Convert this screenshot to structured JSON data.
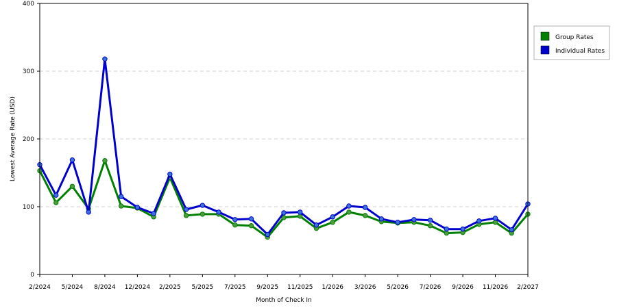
{
  "chart_data": {
    "type": "line",
    "title": "",
    "xlabel": "Month of Check In",
    "ylabel": "Lowest Average Rate (USD)",
    "ylim": [
      0,
      400
    ],
    "y_ticks": [
      "0",
      "100",
      "200",
      "300",
      "400"
    ],
    "y_tick_values": [
      0,
      100,
      200,
      300,
      400
    ],
    "grid": "horizontal dashed",
    "legend_position": "right",
    "x_tick_labels": [
      {
        "label": "2/2024",
        "index": 0
      },
      {
        "label": "5/2024",
        "index": 2
      },
      {
        "label": "8/2024",
        "index": 4
      },
      {
        "label": "12/2024",
        "index": 6
      },
      {
        "label": "2/2025",
        "index": 8
      },
      {
        "label": "5/2025",
        "index": 10
      },
      {
        "label": "7/2025",
        "index": 12
      },
      {
        "label": "9/2025",
        "index": 14
      },
      {
        "label": "11/2025",
        "index": 16
      },
      {
        "label": "1/2026",
        "index": 18
      },
      {
        "label": "3/2026",
        "index": 20
      },
      {
        "label": "5/2026",
        "index": 22
      },
      {
        "label": "7/2026",
        "index": 24
      },
      {
        "label": "9/2026",
        "index": 26
      },
      {
        "label": "11/2026",
        "index": 28
      },
      {
        "label": "2/2027",
        "index": 30
      }
    ],
    "series": [
      {
        "name": "Group Rates",
        "color": "#008000",
        "marker_color": "#4d9d40",
        "values": [
          153,
          106,
          130,
          97,
          168,
          101,
          98,
          85,
          143,
          87,
          89,
          89,
          73,
          72,
          55,
          84,
          86,
          68,
          77,
          92,
          87,
          78,
          76,
          77,
          72,
          61,
          62,
          74,
          77,
          61,
          89
        ]
      },
      {
        "name": "Individual Rates",
        "color": "#0000cc",
        "marker_color": "#3a73d9",
        "values": [
          162,
          117,
          169,
          92,
          318,
          115,
          99,
          90,
          148,
          96,
          102,
          92,
          81,
          82,
          59,
          91,
          92,
          73,
          85,
          101,
          99,
          82,
          77,
          81,
          80,
          67,
          67,
          79,
          83,
          66,
          104
        ]
      }
    ]
  }
}
